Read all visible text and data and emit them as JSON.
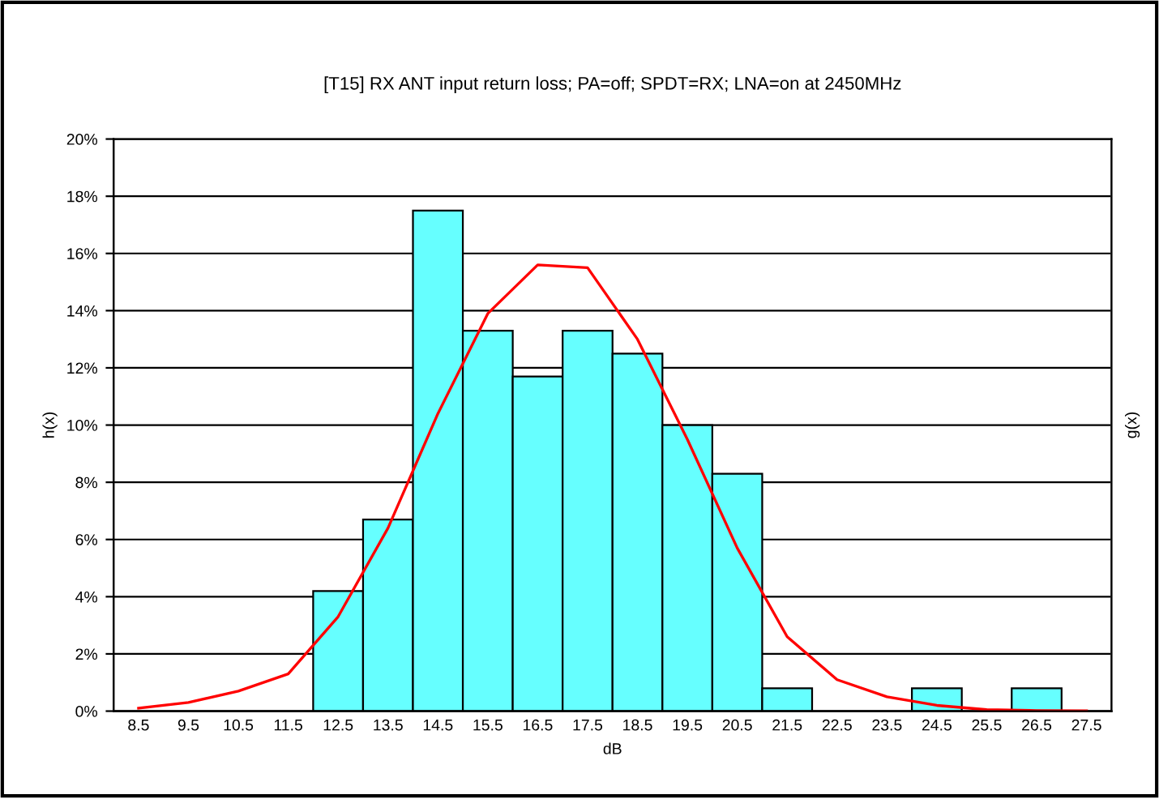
{
  "chart_data": {
    "type": "bar",
    "title": "[T15] RX ANT input return loss; PA=off; SPDT=RX; LNA=on at 2450MHz",
    "xlabel": "dB",
    "ylabel": "h(x)",
    "y2label": "g(x)",
    "categories": [
      "8.5",
      "9.5",
      "10.5",
      "11.5",
      "12.5",
      "13.5",
      "14.5",
      "15.5",
      "16.5",
      "17.5",
      "18.5",
      "19.5",
      "20.5",
      "21.5",
      "22.5",
      "23.5",
      "24.5",
      "25.5",
      "26.5",
      "27.5"
    ],
    "series": [
      {
        "color": "#66ffff",
        "values": [
          null,
          null,
          null,
          null,
          4.2,
          6.7,
          17.5,
          13.3,
          11.7,
          13.3,
          12.5,
          10.0,
          8.3,
          0.8,
          null,
          null,
          0.8,
          null,
          0.8,
          null
        ]
      },
      {
        "type": "line",
        "color": "#ff0000",
        "values": [
          0.1,
          0.3,
          0.7,
          1.3,
          3.3,
          6.4,
          10.4,
          13.9,
          15.6,
          15.5,
          13.0,
          9.5,
          5.7,
          2.6,
          1.1,
          0.5,
          0.2,
          0.05,
          0.02,
          0.01
        ]
      }
    ],
    "ylim": [
      0,
      20
    ],
    "yticks": [
      {
        "value": 0,
        "label": "0%"
      },
      {
        "value": 2,
        "label": "2%"
      },
      {
        "value": 4,
        "label": "4%"
      },
      {
        "value": 6,
        "label": "6%"
      },
      {
        "value": 8,
        "label": "8%"
      },
      {
        "value": 10,
        "label": "10%"
      },
      {
        "value": 12,
        "label": "12%"
      },
      {
        "value": 14,
        "label": "14%"
      },
      {
        "value": 16,
        "label": "16%"
      },
      {
        "value": 18,
        "label": "18%"
      },
      {
        "value": 20,
        "label": "20%"
      }
    ],
    "grid": "y",
    "legend": false
  }
}
